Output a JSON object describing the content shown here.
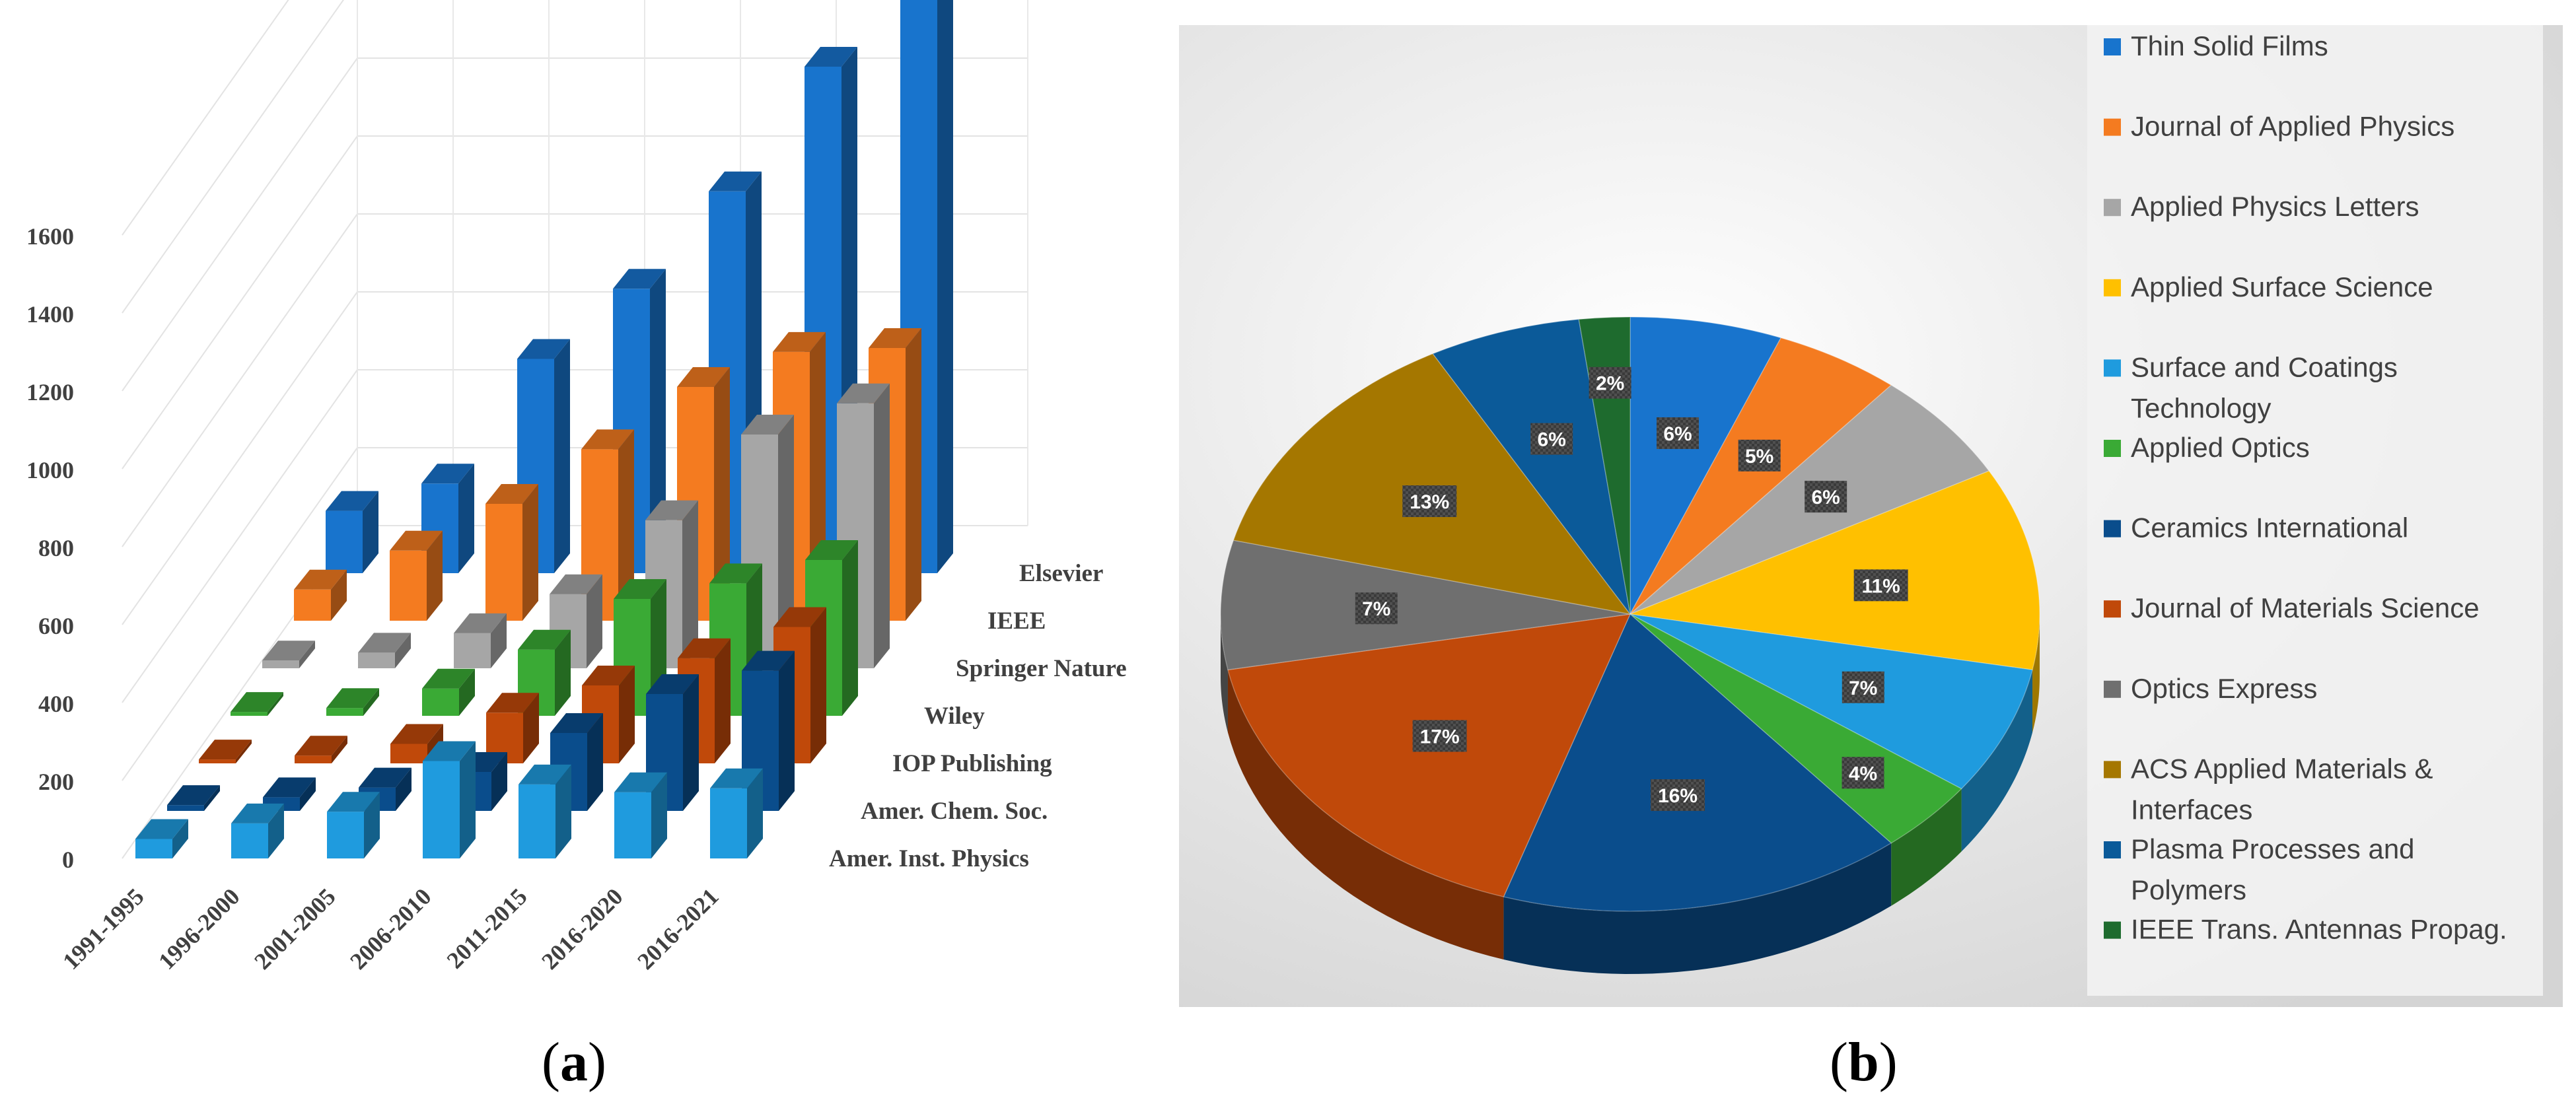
{
  "captions": {
    "a": "a",
    "b": "b"
  },
  "chart_data": [
    {
      "type": "bar",
      "variant": "3d-clustered",
      "categories": [
        "1991-1995",
        "1996-2000",
        "2001-2005",
        "2006-2010",
        "2011-2015",
        "2016-2020",
        "2016-2021"
      ],
      "ylim": [
        0,
        1600
      ],
      "yticks": [
        0,
        200,
        400,
        600,
        800,
        1000,
        1200,
        1400,
        1600
      ],
      "grid": true,
      "series": [
        {
          "name": "Amer. Inst. Physics",
          "color": "#1f9bde",
          "values": [
            50,
            90,
            120,
            250,
            190,
            170,
            180
          ]
        },
        {
          "name": "Amer. Chem. Soc.",
          "color": "#0a4d8c",
          "values": [
            15,
            35,
            60,
            100,
            200,
            300,
            360
          ]
        },
        {
          "name": "IOP Publishing",
          "color": "#c0490a",
          "values": [
            10,
            20,
            50,
            130,
            200,
            270,
            350
          ]
        },
        {
          "name": "Wiley",
          "color": "#3aaa35",
          "values": [
            10,
            20,
            70,
            170,
            300,
            340,
            400
          ]
        },
        {
          "name": "Springer Nature",
          "color": "#a6a6a6",
          "values": [
            20,
            40,
            90,
            190,
            380,
            600,
            680
          ]
        },
        {
          "name": "IEEE",
          "color": "#f47b20",
          "values": [
            80,
            180,
            300,
            440,
            600,
            690,
            700
          ]
        },
        {
          "name": "Elsevier",
          "color": "#1874cd",
          "values": [
            160,
            230,
            550,
            730,
            980,
            1300,
            1580
          ]
        }
      ]
    },
    {
      "type": "pie",
      "variant": "3d",
      "legend_position": "right",
      "slices": [
        {
          "label": "Thin Solid Films",
          "value": 6,
          "text": "6%",
          "color": "#1874cd"
        },
        {
          "label": "Journal of Applied Physics",
          "value": 5,
          "text": "5%",
          "color": "#f47b20"
        },
        {
          "label": "Applied Physics Letters",
          "value": 6,
          "text": "6%",
          "color": "#a6a6a6"
        },
        {
          "label": "Applied Surface Science",
          "value": 11,
          "text": "11%",
          "color": "#ffc000"
        },
        {
          "label": "Surface and Coatings Technology",
          "value": 7,
          "text": "7%",
          "color": "#1f9bde"
        },
        {
          "label": "Applied Optics",
          "value": 4,
          "text": "4%",
          "color": "#3aaa35"
        },
        {
          "label": "Ceramics International",
          "value": 16,
          "text": "16%",
          "color": "#0a4d8c"
        },
        {
          "label": "Journal of Materials Science",
          "value": 17,
          "text": "17%",
          "color": "#c0490a"
        },
        {
          "label": "Optics Express",
          "value": 7,
          "text": "7%",
          "color": "#6f6f6f"
        },
        {
          "label": "ACS Applied Materials & Interfaces",
          "value": 13,
          "text": "13%",
          "color": "#a57700"
        },
        {
          "label": "Plasma Processes and Polymers",
          "value": 6,
          "text": "6%",
          "color": "#0b5a99"
        },
        {
          "label": "IEEE Trans. Antennas Propag.",
          "value": 2,
          "text": "2%",
          "color": "#1e6b2e"
        }
      ]
    }
  ]
}
